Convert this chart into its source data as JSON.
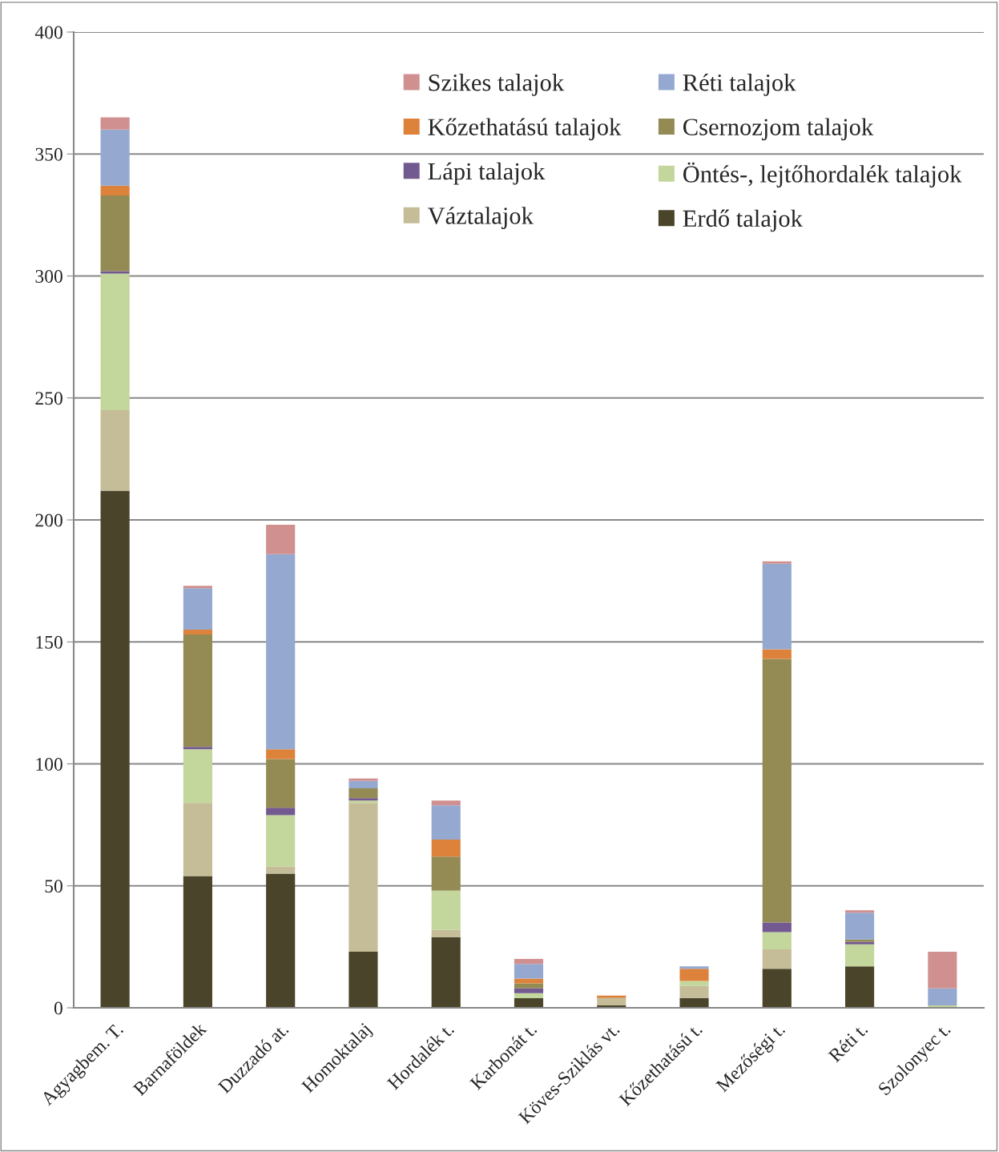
{
  "chart_data": {
    "type": "bar",
    "stacked": true,
    "categories": [
      "Agyagbem. T.",
      "Barnaföldek",
      "Duzzadó at.",
      "Homoktalaj",
      "Hordalék t.",
      "Karbonát t.",
      "Köves-Sziklás vt.",
      "Kőzethatású t.",
      "Mezőségi t.",
      "Réti t.",
      "Szolonyec t."
    ],
    "series": [
      {
        "name": "Erdő talajok",
        "color": "#4a452a",
        "values": [
          212,
          54,
          55,
          23,
          29,
          4,
          1,
          4,
          16,
          17,
          0
        ]
      },
      {
        "name": "Váztalajok",
        "color": "#c4bd97",
        "values": [
          33,
          30,
          3,
          61,
          3,
          0,
          3,
          5,
          8,
          0,
          0
        ]
      },
      {
        "name": "Öntés-, lejtőhordalék talajok",
        "color": "#c3d69b",
        "values": [
          56,
          22,
          21,
          1,
          16,
          2,
          0,
          2,
          7,
          9,
          1
        ]
      },
      {
        "name": "Lápi talajok",
        "color": "#72598f",
        "values": [
          1,
          1,
          3,
          1,
          0,
          2,
          0,
          0,
          4,
          1,
          0
        ]
      },
      {
        "name": "Csernozjom talajok",
        "color": "#948a54",
        "values": [
          31,
          46,
          20,
          4,
          14,
          2,
          0,
          0,
          108,
          1,
          0
        ]
      },
      {
        "name": "Kőzethatású talajok",
        "color": "#dd823b",
        "values": [
          4,
          2,
          4,
          0,
          7,
          2,
          1,
          5,
          4,
          0,
          0
        ]
      },
      {
        "name": "Réti talajok",
        "color": "#95a9d0",
        "values": [
          23,
          17,
          80,
          3,
          14,
          6,
          0,
          1,
          35,
          11,
          7
        ]
      },
      {
        "name": "Szikes talajok",
        "color": "#d09090",
        "values": [
          5,
          1,
          12,
          1,
          2,
          2,
          0,
          0,
          1,
          1,
          15
        ]
      }
    ],
    "ylim": [
      0,
      400
    ],
    "yticks": [
      0,
      50,
      100,
      150,
      200,
      250,
      300,
      350,
      400
    ],
    "grid": "y",
    "legend": "top right"
  }
}
